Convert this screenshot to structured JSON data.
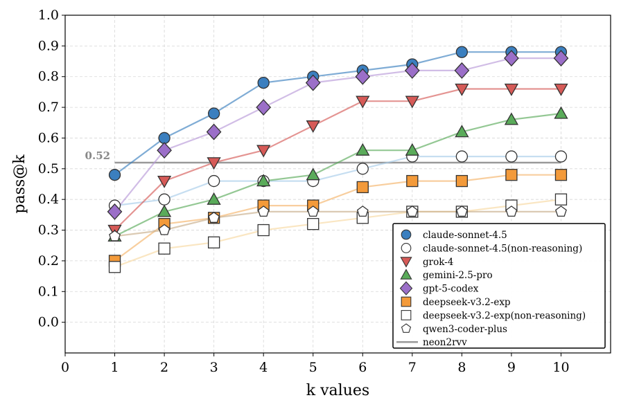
{
  "chart_data": {
    "type": "line",
    "xlabel": "k values",
    "ylabel": "pass@k",
    "xlim": [
      0,
      11
    ],
    "ylim": [
      -0.1,
      1.0
    ],
    "xticks": [
      "0",
      "1",
      "2",
      "3",
      "4",
      "5",
      "6",
      "7",
      "8",
      "9",
      "10"
    ],
    "yticks": [
      "0.0",
      "0.1",
      "0.2",
      "0.3",
      "0.4",
      "0.5",
      "0.6",
      "0.7",
      "0.8",
      "0.9",
      "1.0"
    ],
    "grid": true,
    "legend_position": "lower-right",
    "x": [
      1,
      2,
      3,
      4,
      5,
      6,
      7,
      8,
      9,
      10
    ],
    "series": [
      {
        "name": "claude-sonnet-4.5",
        "marker": "circle",
        "fill": "#3b7fbf",
        "line": "#3b7fbf",
        "values": [
          0.48,
          0.6,
          0.68,
          0.78,
          0.8,
          0.82,
          0.84,
          0.88,
          0.88,
          0.88
        ]
      },
      {
        "name": "claude-sonnet-4.5(non-reasoning)",
        "marker": "circle",
        "fill": "none",
        "line": "#a8cde9",
        "values": [
          0.38,
          0.4,
          0.46,
          0.46,
          0.46,
          0.5,
          0.54,
          0.54,
          0.54,
          0.54
        ]
      },
      {
        "name": "grok-4",
        "marker": "triangle-down",
        "fill": "#d65a57",
        "line": "#d65a57",
        "values": [
          0.3,
          0.46,
          0.52,
          0.56,
          0.64,
          0.72,
          0.72,
          0.76,
          0.76,
          0.76
        ]
      },
      {
        "name": "gemini-2.5-pro",
        "marker": "triangle-up",
        "fill": "#5aab5a",
        "line": "#5aab5a",
        "values": [
          0.28,
          0.36,
          0.4,
          0.46,
          0.48,
          0.56,
          0.56,
          0.62,
          0.66,
          0.68
        ]
      },
      {
        "name": "gpt-5-codex",
        "marker": "diamond",
        "fill": "#9b6fc8",
        "line": "#b89ad8",
        "values": [
          0.36,
          0.56,
          0.62,
          0.7,
          0.78,
          0.8,
          0.82,
          0.82,
          0.86,
          0.86
        ]
      },
      {
        "name": "deepseek-v3.2-exp",
        "marker": "square",
        "fill": "#f39a3a",
        "line": "#f5b46a",
        "values": [
          0.2,
          0.32,
          0.34,
          0.38,
          0.38,
          0.44,
          0.46,
          0.46,
          0.48,
          0.48
        ]
      },
      {
        "name": "deepseek-v3.2-exp(non-reasoning)",
        "marker": "square",
        "fill": "none",
        "line": "#f8d9a2",
        "values": [
          0.18,
          0.24,
          0.26,
          0.3,
          0.32,
          0.34,
          0.36,
          0.36,
          0.38,
          0.4
        ]
      },
      {
        "name": "qwen3-coder-plus",
        "marker": "pentagon",
        "fill": "none",
        "line": "#c8ad8a",
        "values": [
          0.28,
          0.3,
          0.34,
          0.36,
          0.36,
          0.36,
          0.36,
          0.36,
          0.36,
          0.36
        ]
      }
    ],
    "reference_line": {
      "name": "neon2rvv",
      "value": 0.52,
      "label": "0.52",
      "x_start": 1,
      "x_end": 10,
      "color": "#999999"
    }
  }
}
